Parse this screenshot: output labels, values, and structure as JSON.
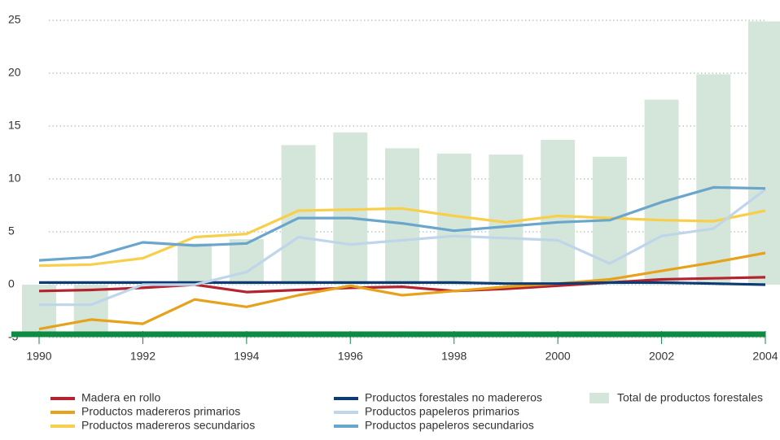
{
  "chart_data": {
    "type": "line",
    "x": [
      1990,
      1991,
      1992,
      1993,
      1994,
      1995,
      1996,
      1997,
      1998,
      1999,
      2000,
      2001,
      2002,
      2003,
      2004
    ],
    "xlim": [
      1990,
      2004
    ],
    "xticks": [
      1990,
      1992,
      1994,
      1996,
      1998,
      2000,
      2002,
      2004
    ],
    "ylim": [
      -5,
      25
    ],
    "yticks": [
      -5,
      0,
      5,
      10,
      15,
      20,
      25
    ],
    "grid": true,
    "bars": {
      "name": "Total  de productos forestales",
      "color": "#d4e6da",
      "values": [
        -4.7,
        -4.7,
        0,
        3.9,
        4.3,
        13.2,
        14.4,
        12.9,
        12.4,
        12.3,
        13.7,
        12.1,
        17.5,
        19.9,
        24.9
      ]
    },
    "series": [
      {
        "name": "Madera en rollo",
        "color": "#b5232e",
        "values": [
          -0.6,
          -0.5,
          -0.3,
          0,
          -0.7,
          -0.5,
          -0.3,
          -0.2,
          -0.6,
          -0.4,
          -0.1,
          0.2,
          0.5,
          0.6,
          0.7
        ]
      },
      {
        "name": "Productos madereros primarios",
        "color": "#e5a21a",
        "values": [
          -4.2,
          -3.3,
          -3.7,
          -1.4,
          -2.1,
          -1.0,
          -0.1,
          -1.0,
          -0.6,
          -0.2,
          0.1,
          0.5,
          1.3,
          2.1,
          3.0
        ]
      },
      {
        "name": "Productos madereros secundarios",
        "color": "#f7cf4a",
        "values": [
          1.8,
          1.9,
          2.5,
          4.5,
          4.8,
          7.0,
          7.1,
          7.2,
          6.5,
          5.9,
          6.5,
          6.3,
          6.1,
          6.0,
          7.0
        ]
      },
      {
        "name": "Productos forestales no madereros",
        "color": "#0f3b74",
        "values": [
          0.2,
          0.2,
          0.2,
          0.2,
          0.2,
          0.2,
          0.2,
          0.2,
          0.2,
          0.1,
          0.1,
          0.2,
          0.2,
          0.1,
          0
        ]
      },
      {
        "name": "Productos papeleros primarios",
        "color": "#bfd5ea",
        "values": [
          -1.9,
          -1.9,
          0,
          0,
          1.2,
          4.5,
          3.8,
          4.2,
          4.6,
          4.4,
          4.2,
          2.0,
          4.6,
          5.3,
          9.0
        ]
      },
      {
        "name": "Productos papeleros secundarios",
        "color": "#6aa5cc",
        "values": [
          2.3,
          2.6,
          4.0,
          3.7,
          3.9,
          6.3,
          6.3,
          5.8,
          5.1,
          5.5,
          5.9,
          6.1,
          7.8,
          9.2,
          9.1
        ]
      }
    ]
  }
}
